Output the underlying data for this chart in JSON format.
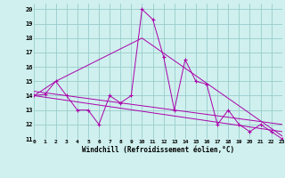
{
  "xlabel": "Windchill (Refroidissement éolien,°C)",
  "bg_color": "#cff0ee",
  "line_color": "#aa00aa",
  "grid_color": "#99cccc",
  "xlim": [
    0,
    23
  ],
  "ylim": [
    11,
    20.4
  ],
  "xticks": [
    0,
    1,
    2,
    3,
    4,
    5,
    6,
    7,
    8,
    9,
    10,
    11,
    12,
    13,
    14,
    15,
    16,
    17,
    18,
    19,
    20,
    21,
    22,
    23
  ],
  "yticks": [
    11,
    12,
    13,
    14,
    15,
    16,
    17,
    18,
    19,
    20
  ],
  "series1_x": [
    0,
    1,
    2,
    3,
    4,
    5,
    6,
    7,
    8,
    9,
    10,
    11,
    12,
    13,
    14,
    15,
    16,
    17,
    18,
    19,
    20,
    21,
    22,
    23
  ],
  "series1_y": [
    14.0,
    14.1,
    15.0,
    14.0,
    13.0,
    13.0,
    12.0,
    14.0,
    13.5,
    14.0,
    20.0,
    19.3,
    16.7,
    13.0,
    16.5,
    15.0,
    14.8,
    12.0,
    13.0,
    12.0,
    11.5,
    12.0,
    11.5,
    11.0
  ],
  "series2_x": [
    0,
    23
  ],
  "series2_y": [
    14.3,
    12.0
  ],
  "series3_x": [
    0,
    23
  ],
  "series3_y": [
    14.0,
    11.5
  ],
  "series4_x": [
    0,
    2,
    10,
    23
  ],
  "series4_y": [
    14.0,
    15.0,
    18.0,
    11.2
  ]
}
